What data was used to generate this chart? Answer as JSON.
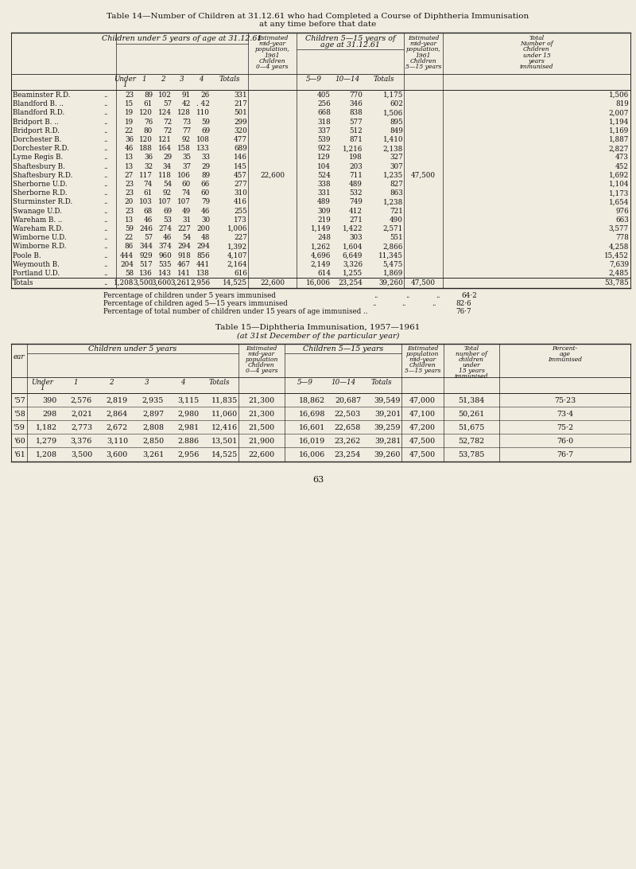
{
  "bg_color": "#f0ece0",
  "title14_line1": "Table 14—Number of Children at 31.12.61 who had Completed a Course of Diphtheria Immunisation",
  "title14_line2": "at any time before that date",
  "title15_line1": "Table 15—Diphtheria Immunisation, 1957—1961",
  "title15_line2": "(at 31st December of the particular year)",
  "page_number": "63",
  "table14_rows": [
    [
      "Beaminster R.D.",
      "23",
      "89",
      "102",
      "91",
      "26",
      "331",
      "",
      "405",
      "770",
      "1,175",
      "",
      "1,506"
    ],
    [
      "Blandford B. ..",
      "15",
      "61",
      "57",
      "42",
      ". 42",
      "217",
      "",
      "256",
      "346",
      "602",
      "",
      "819"
    ],
    [
      "Blandford R.D.",
      "19",
      "120",
      "124",
      "128",
      "110",
      "501",
      "",
      "668",
      "838",
      "1,506",
      "",
      "2,007"
    ],
    [
      "Bridport B. ..",
      "19",
      "76",
      "72",
      "73",
      "59",
      "299",
      "",
      "318",
      "577",
      "895",
      "",
      "1,194"
    ],
    [
      "Bridport R.D.",
      "22",
      "80",
      "72",
      "77",
      "69",
      "320",
      "",
      "337",
      "512",
      "849",
      "",
      "1,169"
    ],
    [
      "Dorchester B.",
      "36",
      "120",
      "121",
      "92",
      "108",
      "477",
      "",
      "539",
      "871",
      "1,410",
      "",
      "1,887"
    ],
    [
      "Dorchester R.D.",
      "46",
      "188",
      "164",
      "158",
      "133",
      "689",
      "",
      "922",
      "1,216",
      "2,138",
      "",
      "2,827"
    ],
    [
      "Lyme Regis B.",
      "13",
      "36",
      "29",
      "35",
      "33",
      "146",
      "",
      "129",
      "198",
      "327",
      "",
      "473"
    ],
    [
      "Shaftesbury B.",
      "13",
      "32",
      "34",
      "37",
      "29",
      "145",
      "",
      "104",
      "203",
      "307",
      "",
      "452"
    ],
    [
      "Shaftesbury R.D.",
      "27",
      "117",
      "118",
      "106",
      "89",
      "457",
      "22,600",
      "524",
      "711",
      "1,235",
      "47,500",
      "1,692"
    ],
    [
      "Sherborne U.D.",
      "23",
      "74",
      "54",
      "60",
      "66",
      "277",
      "",
      "338",
      "489",
      "827",
      "",
      "1,104"
    ],
    [
      "Sherborne R.D.",
      "23",
      "61",
      "92",
      "74",
      "60",
      "310",
      "",
      "331",
      "532",
      "863",
      "",
      "1,173"
    ],
    [
      "Sturminster R.D.",
      "20",
      "103",
      "107",
      "107",
      "79",
      "416",
      "",
      "489",
      "749",
      "1,238",
      "",
      "1,654"
    ],
    [
      "Swanage U.D.",
      "23",
      "68",
      "69",
      "49",
      "46",
      "255",
      "",
      "309",
      "412",
      "721",
      "",
      "976"
    ],
    [
      "Wareham B. ..",
      "13",
      "46",
      "53",
      "31",
      "30",
      "173",
      "",
      "219",
      "271",
      "490",
      "",
      "663"
    ],
    [
      "Wareham R.D.",
      "59",
      "246",
      "274",
      "227",
      "200",
      "1,006",
      "",
      "1,149",
      "1,422",
      "2,571",
      "",
      "3,577"
    ],
    [
      "Wimborne U.D.",
      "22",
      "57",
      "46",
      "54",
      "48",
      "227",
      "",
      "248",
      "303",
      "551",
      "",
      "778"
    ],
    [
      "Wimborne R.D.",
      "86",
      "344",
      "374",
      "294",
      "294",
      "1,392",
      "",
      "1,262",
      "1,604",
      "2,866",
      "",
      "4,258"
    ],
    [
      "Poole B.",
      "444",
      "929",
      "960",
      "918",
      "856",
      "4,107",
      "",
      "4,696",
      "6,649",
      "11,345",
      "",
      "15,452"
    ],
    [
      "Weymouth B.",
      "204",
      "517",
      "535",
      "467",
      "441",
      "2,164",
      "",
      "2,149",
      "3,326",
      "5,475",
      "",
      "7,639"
    ],
    [
      "Portland U.D.",
      "58",
      "136",
      "143",
      "141",
      "138",
      "616",
      "",
      "614",
      "1,255",
      "1,869",
      "",
      "2,485"
    ]
  ],
  "table14_totals": [
    "Totals",
    "1,208",
    "3,500",
    "3,600",
    "3,261",
    "2,956",
    "14,525",
    "22,600",
    "16,006",
    "23,254",
    "39,260",
    "47,500",
    "53,785"
  ],
  "table14_footnotes": [
    [
      "Percentage of children under 5 years immunised",
      "..",
      "..",
      "..",
      "64·2"
    ],
    [
      "Percentage of children aged 5—15 years immunised",
      "..",
      "..",
      "..",
      "82·6"
    ],
    [
      "Percentage of total number of children under 15 years of age immunised ..",
      "",
      "",
      "",
      "76·7"
    ]
  ],
  "table15_rows": [
    [
      "'57",
      "390",
      "2,576",
      "2,819",
      "2,935",
      "3,115",
      "11,835",
      "21,300",
      "18,862",
      "20,687",
      "39,549",
      "47,000",
      "51,384",
      "75·23"
    ],
    [
      "'58",
      "298",
      "2,021",
      "2,864",
      "2,897",
      "2,980",
      "11,060",
      "21,300",
      "16,698",
      "22,503",
      "39,201",
      "47,100",
      "50,261",
      "73·4"
    ],
    [
      "'59",
      "1,182",
      "2,773",
      "2,672",
      "2,808",
      "2,981",
      "12,416",
      "21,500",
      "16,601",
      "22,658",
      "39,259",
      "47,200",
      "51,675",
      "75·2"
    ],
    [
      "'60",
      "1,279",
      "3,376",
      "3,110",
      "2,850",
      "2.886",
      "13,501",
      "21,900",
      "16,019",
      "23,262",
      "39,281",
      "47,500",
      "52,782",
      "76·0"
    ],
    [
      "'61",
      "1,208",
      "3,500",
      "3,600",
      "3,261",
      "2,956",
      "14,525",
      "22,600",
      "16,006",
      "23,254",
      "39,260",
      "47,500",
      "53,785",
      "76·7"
    ]
  ]
}
